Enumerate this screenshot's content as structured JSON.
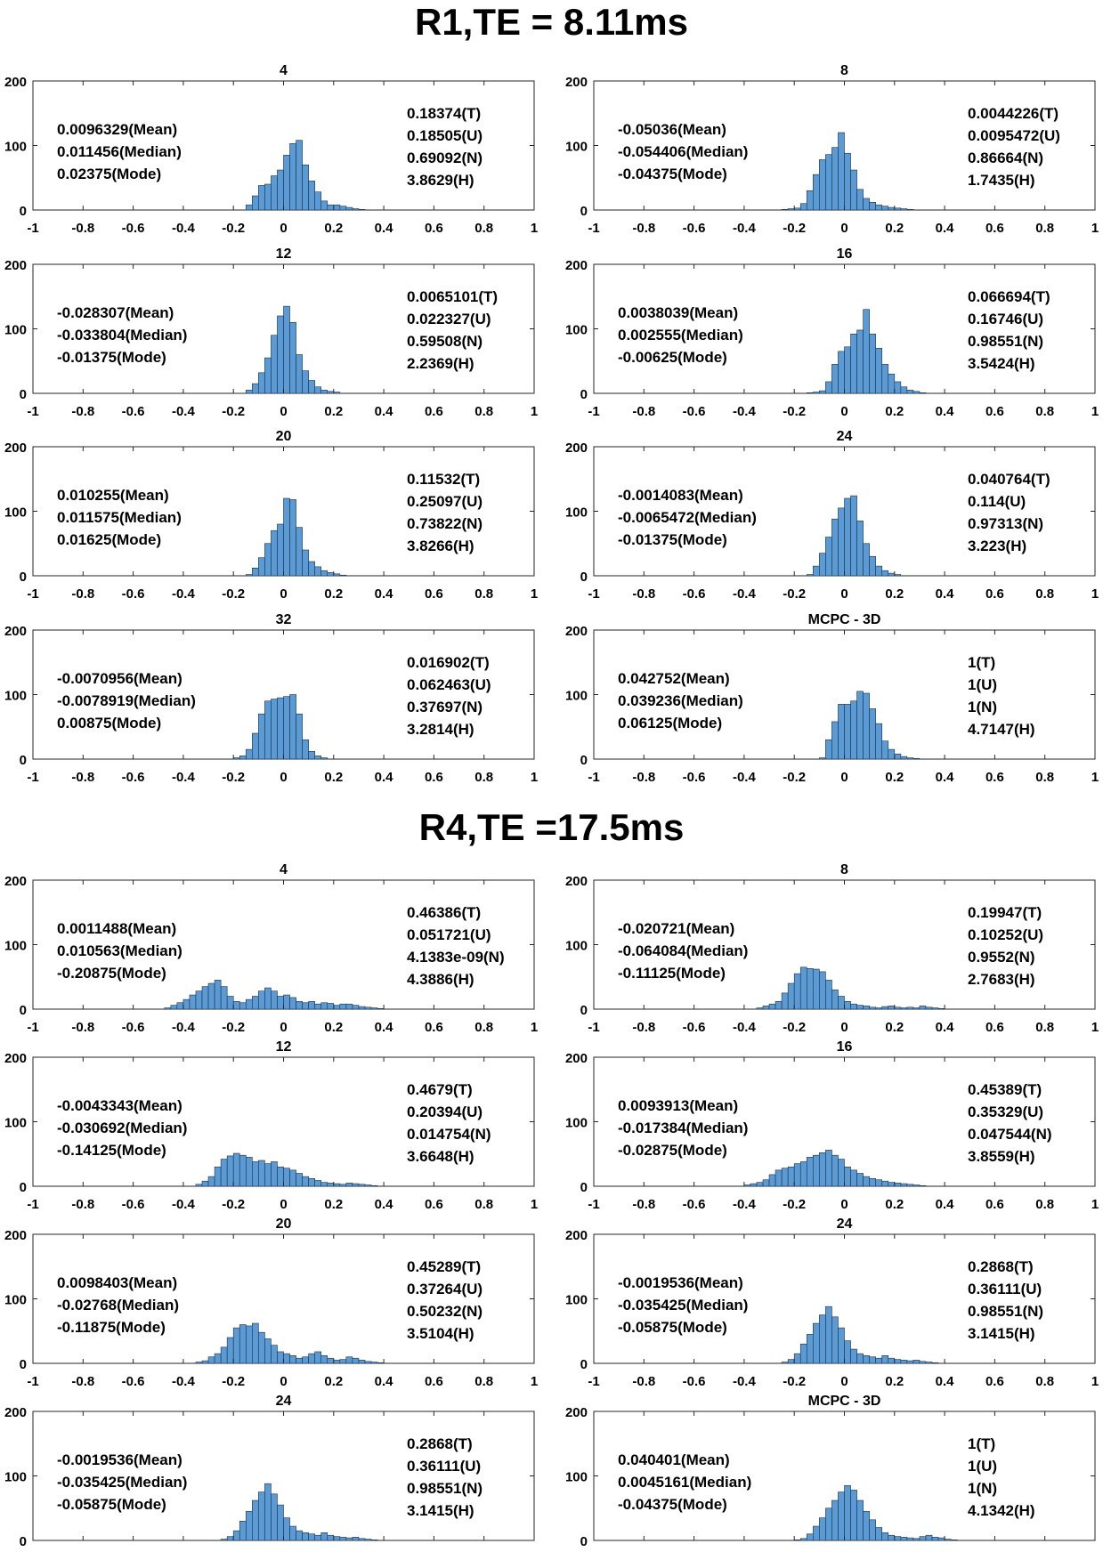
{
  "sections": [
    {
      "title": "R1,TE = 8.11ms",
      "panels": [
        {
          "label": "4",
          "stats_left": [
            "0.0096329(Mean)",
            "0.011456(Median)",
            "0.02375(Mode)"
          ],
          "stats_right": [
            "0.18374(T)",
            "0.18505(U)",
            "0.69092(N)",
            "3.8629(H)"
          ]
        },
        {
          "label": "8",
          "stats_left": [
            "-0.05036(Mean)",
            "-0.054406(Median)",
            "-0.04375(Mode)"
          ],
          "stats_right": [
            "0.0044226(T)",
            "0.0095472(U)",
            "0.86664(N)",
            "1.7435(H)"
          ]
        },
        {
          "label": "12",
          "stats_left": [
            "-0.028307(Mean)",
            "-0.033804(Median)",
            "-0.01375(Mode)"
          ],
          "stats_right": [
            "0.0065101(T)",
            "0.022327(U)",
            "0.59508(N)",
            "2.2369(H)"
          ]
        },
        {
          "label": "16",
          "stats_left": [
            "0.0038039(Mean)",
            "0.002555(Median)",
            "-0.00625(Mode)"
          ],
          "stats_right": [
            "0.066694(T)",
            "0.16746(U)",
            "0.98551(N)",
            "3.5424(H)"
          ]
        },
        {
          "label": "20",
          "stats_left": [
            "0.010255(Mean)",
            "0.011575(Median)",
            "0.01625(Mode)"
          ],
          "stats_right": [
            "0.11532(T)",
            "0.25097(U)",
            "0.73822(N)",
            "3.8266(H)"
          ]
        },
        {
          "label": "24",
          "stats_left": [
            "-0.0014083(Mean)",
            "-0.0065472(Median)",
            "-0.01375(Mode)"
          ],
          "stats_right": [
            "0.040764(T)",
            "0.114(U)",
            "0.97313(N)",
            "3.223(H)"
          ]
        },
        {
          "label": "32",
          "stats_left": [
            "-0.0070956(Mean)",
            "-0.0078919(Median)",
            "0.00875(Mode)"
          ],
          "stats_right": [
            "0.016902(T)",
            "0.062463(U)",
            "0.37697(N)",
            "3.2814(H)"
          ]
        },
        {
          "label": "MCPC - 3D",
          "stats_left": [
            "0.042752(Mean)",
            "0.039236(Median)",
            "0.06125(Mode)"
          ],
          "stats_right": [
            "1(T)",
            "1(U)",
            "1(N)",
            "4.7147(H)"
          ]
        }
      ]
    },
    {
      "title": "R4,TE =17.5ms",
      "panels": [
        {
          "label": "4",
          "stats_left": [
            "0.0011488(Mean)",
            "0.010563(Median)",
            "-0.20875(Mode)"
          ],
          "stats_right": [
            "0.46386(T)",
            "0.051721(U)",
            "4.1383e-09(N)",
            "4.3886(H)"
          ]
        },
        {
          "label": "8",
          "stats_left": [
            "-0.020721(Mean)",
            "-0.064084(Median)",
            "-0.11125(Mode)"
          ],
          "stats_right": [
            "0.19947(T)",
            "0.10252(U)",
            "0.9552(N)",
            "2.7683(H)"
          ]
        },
        {
          "label": "12",
          "stats_left": [
            "-0.0043343(Mean)",
            "-0.030692(Median)",
            "-0.14125(Mode)"
          ],
          "stats_right": [
            "0.4679(T)",
            "0.20394(U)",
            "0.014754(N)",
            "3.6648(H)"
          ]
        },
        {
          "label": "16",
          "stats_left": [
            "0.0093913(Mean)",
            "-0.017384(Median)",
            "-0.02875(Mode)"
          ],
          "stats_right": [
            "0.45389(T)",
            "0.35329(U)",
            "0.047544(N)",
            "3.8559(H)"
          ]
        },
        {
          "label": "20",
          "stats_left": [
            "0.0098403(Mean)",
            "-0.02768(Median)",
            "-0.11875(Mode)"
          ],
          "stats_right": [
            "0.45289(T)",
            "0.37264(U)",
            "0.50232(N)",
            "3.5104(H)"
          ]
        },
        {
          "label": "24",
          "stats_left": [
            "-0.0019536(Mean)",
            "-0.035425(Median)",
            "-0.05875(Mode)"
          ],
          "stats_right": [
            "0.2868(T)",
            "0.36111(U)",
            "0.98551(N)",
            "3.1415(H)"
          ]
        },
        {
          "label": "24",
          "stats_left": [
            "-0.0019536(Mean)",
            "-0.035425(Median)",
            "-0.05875(Mode)"
          ],
          "stats_right": [
            "0.2868(T)",
            "0.36111(U)",
            "0.98551(N)",
            "3.1415(H)"
          ]
        },
        {
          "label": "MCPC - 3D",
          "stats_left": [
            "0.040401(Mean)",
            "0.0045161(Median)",
            "-0.04375(Mode)"
          ],
          "stats_right": [
            "1(T)",
            "1(U)",
            "1(N)",
            "4.1342(H)"
          ]
        }
      ]
    }
  ],
  "chart_data": {
    "type": "bar",
    "subtype": "histogram-grid",
    "bar_color": "#5b9bd5",
    "bar_edge_color": "#1f2f44",
    "xlim": [
      -1,
      1
    ],
    "ylim": [
      0,
      200
    ],
    "xticks": [
      -1,
      -0.8,
      -0.6,
      -0.4,
      -0.2,
      0,
      0.2,
      0.4,
      0.6,
      0.8,
      1
    ],
    "xtick_labels": [
      "-1",
      "-0.8",
      "-0.6",
      "-0.4",
      "-0.2",
      "0",
      "0.2",
      "0.4",
      "0.6",
      "0.8",
      "1"
    ],
    "yticks": [
      0,
      100,
      200
    ],
    "ytick_labels": [
      "0",
      "100",
      "200"
    ],
    "bin_width": 0.025,
    "panels": [
      {
        "title": "4",
        "bin_start": -0.15,
        "counts": [
          8,
          22,
          38,
          40,
          53,
          62,
          85,
          103,
          108,
          70,
          45,
          28,
          14,
          8,
          8,
          6,
          4,
          2,
          1
        ]
      },
      {
        "title": "8",
        "bin_start": -0.25,
        "counts": [
          1,
          2,
          3,
          10,
          30,
          55,
          78,
          86,
          97,
          120,
          88,
          62,
          32,
          18,
          12,
          8,
          6,
          4,
          3,
          2,
          1
        ]
      },
      {
        "title": "12",
        "bin_start": -0.15,
        "counts": [
          5,
          15,
          32,
          55,
          90,
          120,
          135,
          110,
          60,
          35,
          20,
          10,
          5,
          3,
          2
        ]
      },
      {
        "title": "16",
        "bin_start": -0.15,
        "counts": [
          1,
          2,
          4,
          18,
          45,
          65,
          72,
          92,
          98,
          130,
          92,
          70,
          45,
          30,
          18,
          10,
          5,
          3,
          1
        ]
      },
      {
        "title": "20",
        "bin_start": -0.15,
        "counts": [
          2,
          12,
          28,
          50,
          70,
          80,
          120,
          118,
          75,
          40,
          22,
          14,
          8,
          5,
          3,
          1
        ]
      },
      {
        "title": "24",
        "bin_start": -0.15,
        "counts": [
          2,
          15,
          35,
          60,
          88,
          105,
          120,
          124,
          85,
          50,
          30,
          15,
          8,
          4,
          2
        ]
      },
      {
        "title": "32",
        "bin_start": -0.2,
        "counts": [
          2,
          5,
          15,
          40,
          70,
          90,
          93,
          95,
          97,
          100,
          70,
          30,
          12,
          5,
          2
        ]
      },
      {
        "title": "MCPC - 3D",
        "bin_start": -0.1,
        "counts": [
          2,
          30,
          58,
          85,
          85,
          90,
          105,
          102,
          78,
          55,
          28,
          15,
          8,
          4,
          2,
          1
        ]
      },
      {
        "title": "4",
        "bin_start": -0.475,
        "counts": [
          2,
          6,
          10,
          15,
          22,
          28,
          35,
          40,
          45,
          35,
          20,
          12,
          10,
          15,
          20,
          28,
          33,
          28,
          20,
          22,
          18,
          12,
          10,
          12,
          8,
          10,
          9,
          6,
          8,
          8,
          6,
          4,
          3,
          2,
          1
        ]
      },
      {
        "title": "8",
        "bin_start": -0.35,
        "counts": [
          2,
          5,
          8,
          12,
          25,
          40,
          55,
          65,
          63,
          62,
          58,
          45,
          30,
          20,
          12,
          8,
          6,
          5,
          3,
          2,
          4,
          5,
          3,
          2,
          3,
          2,
          5,
          3,
          2,
          1
        ]
      },
      {
        "title": "12",
        "bin_start": -0.35,
        "counts": [
          3,
          8,
          15,
          30,
          42,
          47,
          51,
          48,
          45,
          38,
          40,
          35,
          38,
          30,
          28,
          25,
          20,
          15,
          12,
          9,
          6,
          5,
          4,
          3,
          5,
          4,
          3,
          2,
          1
        ]
      },
      {
        "title": "16",
        "bin_start": -0.4,
        "counts": [
          2,
          4,
          6,
          10,
          18,
          25,
          28,
          30,
          35,
          38,
          45,
          48,
          52,
          56,
          48,
          42,
          30,
          25,
          20,
          15,
          12,
          10,
          8,
          6,
          5,
          4,
          3,
          2,
          1
        ]
      },
      {
        "title": "20",
        "bin_start": -0.35,
        "counts": [
          2,
          4,
          10,
          15,
          25,
          40,
          55,
          60,
          58,
          62,
          48,
          38,
          28,
          18,
          15,
          12,
          8,
          10,
          15,
          18,
          12,
          8,
          5,
          6,
          10,
          8,
          5,
          3,
          2,
          1
        ]
      },
      {
        "title": "24",
        "bin_start": -0.25,
        "counts": [
          2,
          6,
          15,
          30,
          45,
          62,
          75,
          88,
          72,
          55,
          35,
          22,
          15,
          12,
          10,
          8,
          12,
          8,
          6,
          5,
          4,
          5,
          3,
          2,
          1
        ]
      },
      {
        "title": "24",
        "bin_start": -0.25,
        "counts": [
          2,
          6,
          15,
          30,
          45,
          62,
          75,
          88,
          72,
          55,
          35,
          22,
          15,
          12,
          10,
          8,
          12,
          8,
          6,
          5,
          4,
          5,
          3,
          2,
          1
        ]
      },
      {
        "title": "MCPC - 3D",
        "bin_start": -0.2,
        "counts": [
          1,
          3,
          10,
          22,
          35,
          50,
          62,
          75,
          85,
          78,
          62,
          45,
          32,
          20,
          12,
          8,
          6,
          5,
          4,
          3,
          6,
          8,
          5,
          4,
          2,
          1
        ]
      }
    ]
  }
}
